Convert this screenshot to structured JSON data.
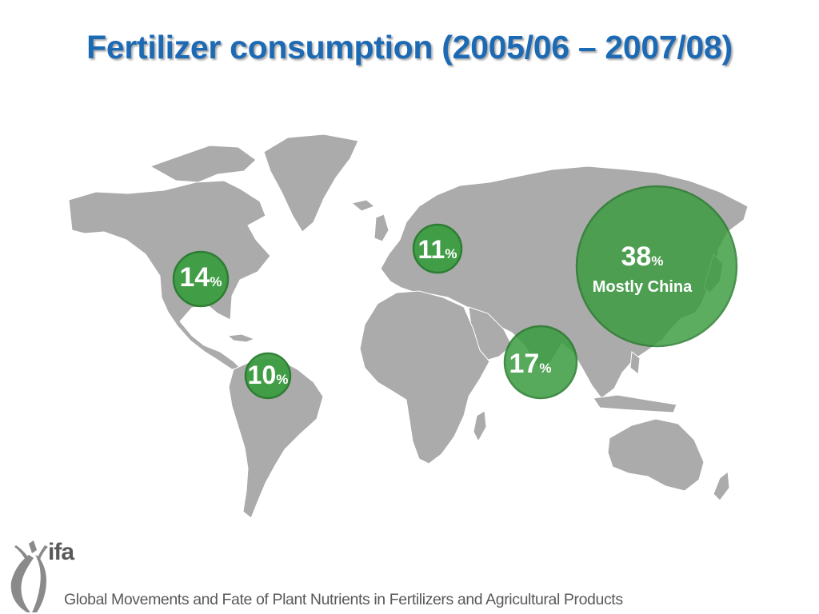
{
  "title": "Fertilizer consumption (2005/06 – 2007/08)",
  "map": {
    "land_color": "#ababab",
    "bubble_color": "#3a9c3f",
    "bubble_stroke": "#237a29",
    "regions": [
      {
        "id": "north-america",
        "value": "14",
        "unit": "%",
        "note": ""
      },
      {
        "id": "latin-america",
        "value": "10",
        "unit": "%",
        "note": ""
      },
      {
        "id": "europe",
        "value": "11",
        "unit": "%",
        "note": ""
      },
      {
        "id": "south-asia",
        "value": "17",
        "unit": "%",
        "note": ""
      },
      {
        "id": "east-asia",
        "value": "38",
        "unit": "%",
        "note": "Mostly China"
      }
    ]
  },
  "footer": {
    "logo_text": "ifa",
    "tagline": "Global Movements and Fate of Plant Nutrients in Fertilizers and Agricultural Products"
  },
  "colors": {
    "title": "#1d6ab4",
    "footer_text": "#595959"
  }
}
